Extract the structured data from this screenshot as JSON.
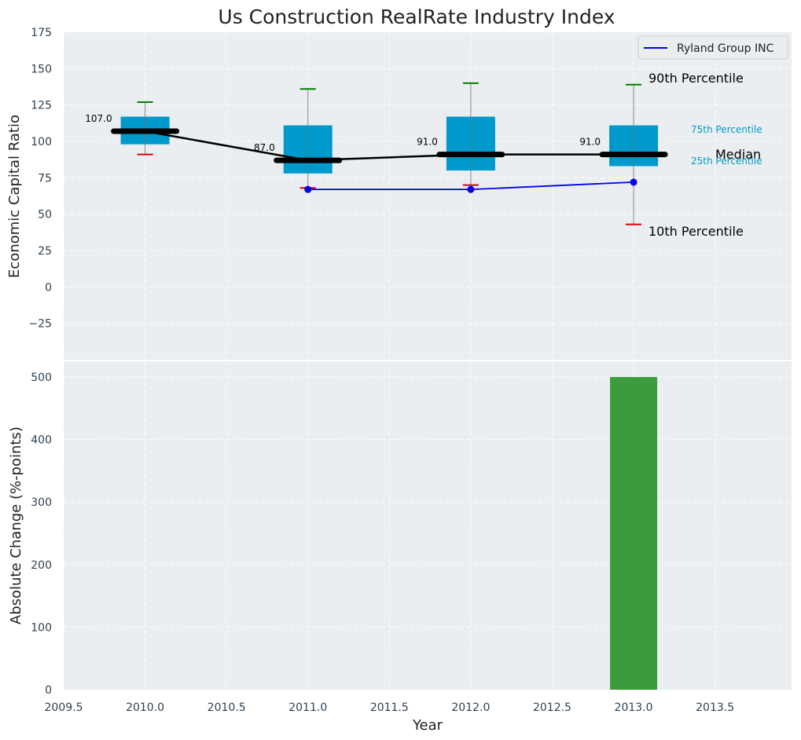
{
  "chart_data": [
    {
      "type": "box",
      "title": "Us Construction RealRate Industry Index",
      "ylabel": "Economic Capital Ratio",
      "ylim": [
        -50,
        175
      ],
      "yticks": [
        -25,
        0,
        25,
        50,
        75,
        100,
        125,
        150,
        175
      ],
      "yticklabels": [
        "−25",
        "0",
        "25",
        "50",
        "75",
        "100",
        "125",
        "150",
        "175"
      ],
      "grid": true,
      "legend_position": "top-right",
      "boxes": [
        {
          "x": 2010,
          "p10": 91,
          "p25": 98,
          "median": 107,
          "p75": 117,
          "p90": 127,
          "label": "107.0"
        },
        {
          "x": 2011,
          "p10": 68,
          "p25": 78,
          "median": 87,
          "p75": 111,
          "p90": 136,
          "label": "87.0"
        },
        {
          "x": 2012,
          "p10": 70,
          "p25": 80,
          "median": 91,
          "p75": 117,
          "p90": 140,
          "label": "91.0"
        },
        {
          "x": 2013,
          "p10": 43,
          "p25": 83,
          "median": 91,
          "p75": 111,
          "p90": 139,
          "label": "91.0"
        }
      ],
      "series": [
        {
          "name": "Ryland Group INC",
          "color": "#0000ee",
          "x": [
            2011,
            2012,
            2013
          ],
          "values": [
            67,
            67,
            72
          ]
        }
      ],
      "annotations": {
        "p90": "90th Percentile",
        "p75": "75th Percentile",
        "median": "Median",
        "p25": "25th Percentile",
        "p10": "10th Percentile"
      },
      "colors": {
        "box": "#0099cc",
        "median": "#000000",
        "p90_cap": "#008000",
        "p10_cap": "#dd0000",
        "background": "#eaeef0"
      }
    },
    {
      "type": "bar",
      "ylabel": "Absolute Change (%-points)",
      "xlabel": "Year",
      "xlim": [
        2009.5,
        2013.97
      ],
      "ylim": [
        0,
        525
      ],
      "xticks": [
        2009.5,
        2010.0,
        2010.5,
        2011.0,
        2011.5,
        2012.0,
        2012.5,
        2013.0,
        2013.5
      ],
      "xticklabels": [
        "2009.5",
        "2010.0",
        "2010.5",
        "2011.0",
        "2011.5",
        "2012.0",
        "2012.5",
        "2013.0",
        "2013.5"
      ],
      "yticks": [
        0,
        100,
        200,
        300,
        400,
        500
      ],
      "yticklabels": [
        "0",
        "100",
        "200",
        "300",
        "400",
        "500"
      ],
      "grid": true,
      "bars": [
        {
          "x": 2013,
          "value": 500,
          "color": "#3c9c3c"
        }
      ]
    }
  ]
}
